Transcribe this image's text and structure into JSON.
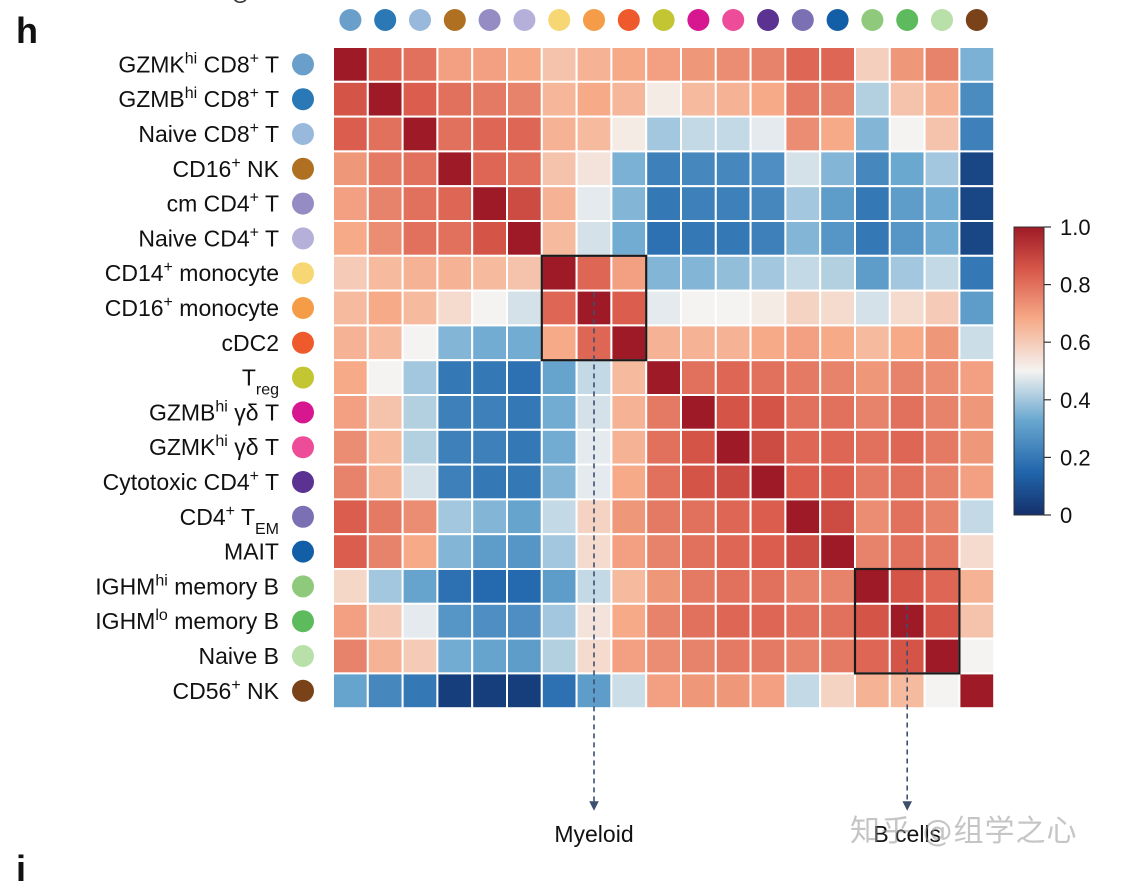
{
  "panel": "h",
  "cut_top_label": "G",
  "watermark": "知乎 @组学之心",
  "chart_data": {
    "type": "heatmap",
    "title": "",
    "rows": [
      {
        "name": "GZMKhi CD8+ T",
        "base": "GZMK",
        "sup1": "hi",
        "mid": " CD8",
        "sup2": "+",
        "tail": " T",
        "sub": "",
        "color": "#6a9fcb"
      },
      {
        "name": "GZMBhi CD8+ T",
        "base": "GZMB",
        "sup1": "hi",
        "mid": " CD8",
        "sup2": "+",
        "tail": " T",
        "sub": "",
        "color": "#2a78b5"
      },
      {
        "name": "Naive CD8+ T",
        "base": "Naive CD8",
        "sup1": "+",
        "mid": " T",
        "sup2": "",
        "tail": "",
        "sub": "",
        "color": "#98b8dc"
      },
      {
        "name": "CD16+ NK",
        "base": "CD16",
        "sup1": "+",
        "mid": " NK",
        "sup2": "",
        "tail": "",
        "sub": "",
        "color": "#b07022"
      },
      {
        "name": "cm CD4+ T",
        "base": "cm CD4",
        "sup1": "+",
        "mid": " T",
        "sup2": "",
        "tail": "",
        "sub": "",
        "color": "#948cc2"
      },
      {
        "name": "Naive CD4+ T",
        "base": "Naive CD4",
        "sup1": "+",
        "mid": " T",
        "sup2": "",
        "tail": "",
        "sub": "",
        "color": "#b4b0da"
      },
      {
        "name": "CD14+ monocyte",
        "base": "CD14",
        "sup1": "+",
        "mid": " monocyte",
        "sup2": "",
        "tail": "",
        "sub": "",
        "color": "#f7d774"
      },
      {
        "name": "CD16+ monocyte",
        "base": "CD16",
        "sup1": "+",
        "mid": " monocyte",
        "sup2": "",
        "tail": "",
        "sub": "",
        "color": "#f59c48"
      },
      {
        "name": "cDC2",
        "base": "cDC2",
        "sup1": "",
        "mid": "",
        "sup2": "",
        "tail": "",
        "sub": "",
        "color": "#ef5a2d"
      },
      {
        "name": "Treg",
        "base": "T",
        "sup1": "",
        "mid": "",
        "sup2": "",
        "tail": "",
        "sub": "reg",
        "color": "#c3c533"
      },
      {
        "name": "GZMBhi γδ T",
        "base": "GZMB",
        "sup1": "hi",
        "mid": " γδ T",
        "sup2": "",
        "tail": "",
        "sub": "",
        "color": "#d6178f"
      },
      {
        "name": "GZMKhi γδ T",
        "base": "GZMK",
        "sup1": "hi",
        "mid": " γδ T",
        "sup2": "",
        "tail": "",
        "sub": "",
        "color": "#ec4c98"
      },
      {
        "name": "Cytotoxic CD4+ T",
        "base": "Cytotoxic CD4",
        "sup1": "+",
        "mid": " T",
        "sup2": "",
        "tail": "",
        "sub": "",
        "color": "#5b3192"
      },
      {
        "name": "CD4+ TEM",
        "base": "CD4",
        "sup1": "+",
        "mid": " T",
        "sup2": "",
        "tail": "",
        "sub": "EM",
        "color": "#7b70b4"
      },
      {
        "name": "MAIT",
        "base": "MAIT",
        "sup1": "",
        "mid": "",
        "sup2": "",
        "tail": "",
        "sub": "",
        "color": "#125fa8"
      },
      {
        "name": "IGHMhi memory B",
        "base": "IGHM",
        "sup1": "hi",
        "mid": " memory B",
        "sup2": "",
        "tail": "",
        "sub": "",
        "color": "#8fca7c"
      },
      {
        "name": "IGHMlo memory B",
        "base": "IGHM",
        "sup1": "lo",
        "mid": " memory B",
        "sup2": "",
        "tail": "",
        "sub": "",
        "color": "#5dbb5d"
      },
      {
        "name": "Naive B",
        "base": "Naive B",
        "sup1": "",
        "mid": "",
        "sup2": "",
        "tail": "",
        "sub": "",
        "color": "#b9e0a8"
      },
      {
        "name": "CD56+ NK",
        "base": "CD56",
        "sup1": "+",
        "mid": " NK",
        "sup2": "",
        "tail": "",
        "sub": "",
        "color": "#7a4218"
      }
    ],
    "values": [
      [
        1.0,
        0.82,
        0.8,
        0.7,
        0.7,
        0.68,
        0.62,
        0.66,
        0.68,
        0.7,
        0.72,
        0.74,
        0.76,
        0.82,
        0.82,
        0.59,
        0.72,
        0.76,
        0.35
      ],
      [
        0.86,
        1.0,
        0.84,
        0.8,
        0.78,
        0.76,
        0.65,
        0.68,
        0.65,
        0.52,
        0.64,
        0.66,
        0.68,
        0.78,
        0.76,
        0.42,
        0.62,
        0.66,
        0.25
      ],
      [
        0.84,
        0.8,
        1.0,
        0.8,
        0.82,
        0.82,
        0.66,
        0.64,
        0.52,
        0.4,
        0.44,
        0.44,
        0.48,
        0.74,
        0.68,
        0.36,
        0.5,
        0.62,
        0.22
      ],
      [
        0.72,
        0.78,
        0.8,
        1.0,
        0.82,
        0.8,
        0.62,
        0.54,
        0.35,
        0.22,
        0.24,
        0.24,
        0.26,
        0.46,
        0.36,
        0.24,
        0.33,
        0.4,
        0.06
      ],
      [
        0.7,
        0.76,
        0.8,
        0.82,
        1.0,
        0.88,
        0.66,
        0.48,
        0.36,
        0.2,
        0.22,
        0.22,
        0.24,
        0.4,
        0.3,
        0.2,
        0.3,
        0.34,
        0.06
      ],
      [
        0.68,
        0.74,
        0.8,
        0.8,
        0.86,
        1.0,
        0.64,
        0.46,
        0.34,
        0.18,
        0.2,
        0.2,
        0.22,
        0.36,
        0.28,
        0.2,
        0.28,
        0.34,
        0.06
      ],
      [
        0.6,
        0.64,
        0.66,
        0.66,
        0.64,
        0.62,
        1.0,
        0.82,
        0.7,
        0.36,
        0.36,
        0.38,
        0.4,
        0.44,
        0.42,
        0.3,
        0.4,
        0.44,
        0.2
      ],
      [
        0.64,
        0.68,
        0.64,
        0.56,
        0.5,
        0.46,
        0.82,
        1.0,
        0.84,
        0.48,
        0.5,
        0.5,
        0.52,
        0.58,
        0.56,
        0.46,
        0.56,
        0.6,
        0.3
      ],
      [
        0.66,
        0.64,
        0.5,
        0.36,
        0.34,
        0.34,
        0.68,
        0.82,
        1.0,
        0.66,
        0.66,
        0.66,
        0.68,
        0.7,
        0.68,
        0.64,
        0.68,
        0.72,
        0.45
      ],
      [
        0.68,
        0.5,
        0.4,
        0.2,
        0.2,
        0.18,
        0.32,
        0.44,
        0.64,
        1.0,
        0.8,
        0.82,
        0.8,
        0.78,
        0.76,
        0.72,
        0.76,
        0.74,
        0.7
      ],
      [
        0.7,
        0.62,
        0.42,
        0.22,
        0.22,
        0.2,
        0.34,
        0.46,
        0.66,
        0.78,
        1.0,
        0.86,
        0.86,
        0.8,
        0.8,
        0.76,
        0.8,
        0.76,
        0.72
      ],
      [
        0.74,
        0.64,
        0.42,
        0.22,
        0.22,
        0.2,
        0.34,
        0.48,
        0.66,
        0.8,
        0.86,
        1.0,
        0.88,
        0.82,
        0.82,
        0.8,
        0.82,
        0.78,
        0.72
      ],
      [
        0.76,
        0.66,
        0.46,
        0.22,
        0.2,
        0.2,
        0.36,
        0.48,
        0.68,
        0.8,
        0.86,
        0.88,
        1.0,
        0.84,
        0.84,
        0.78,
        0.8,
        0.76,
        0.7
      ],
      [
        0.84,
        0.78,
        0.74,
        0.4,
        0.36,
        0.32,
        0.44,
        0.58,
        0.72,
        0.78,
        0.8,
        0.82,
        0.84,
        1.0,
        0.88,
        0.74,
        0.8,
        0.76,
        0.44
      ],
      [
        0.84,
        0.76,
        0.68,
        0.36,
        0.3,
        0.28,
        0.4,
        0.56,
        0.7,
        0.76,
        0.8,
        0.82,
        0.84,
        0.88,
        1.0,
        0.76,
        0.8,
        0.78,
        0.56
      ],
      [
        0.57,
        0.4,
        0.32,
        0.18,
        0.16,
        0.16,
        0.3,
        0.44,
        0.64,
        0.72,
        0.78,
        0.8,
        0.8,
        0.76,
        0.76,
        1.0,
        0.86,
        0.82,
        0.66
      ],
      [
        0.7,
        0.6,
        0.48,
        0.28,
        0.26,
        0.26,
        0.4,
        0.54,
        0.68,
        0.76,
        0.8,
        0.82,
        0.82,
        0.8,
        0.8,
        0.86,
        1.0,
        0.86,
        0.62
      ],
      [
        0.76,
        0.66,
        0.6,
        0.34,
        0.32,
        0.3,
        0.42,
        0.56,
        0.7,
        0.74,
        0.76,
        0.78,
        0.78,
        0.76,
        0.78,
        0.82,
        0.86,
        1.0,
        0.5
      ],
      [
        0.32,
        0.24,
        0.2,
        0.04,
        0.04,
        0.04,
        0.18,
        0.3,
        0.45,
        0.7,
        0.72,
        0.72,
        0.7,
        0.44,
        0.58,
        0.66,
        0.64,
        0.5,
        1.0
      ]
    ],
    "colorbar": {
      "min": 0,
      "max": 1.0,
      "ticks": [
        "1.0",
        "0.8",
        "0.6",
        "0.4",
        "0.2",
        "0"
      ],
      "tick_values": [
        1.0,
        0.8,
        0.6,
        0.4,
        0.2,
        0
      ],
      "stops": [
        {
          "value": 0.0,
          "color": "#14306b"
        },
        {
          "value": 0.15,
          "color": "#2166ac"
        },
        {
          "value": 0.33,
          "color": "#6aa8d0"
        },
        {
          "value": 0.5,
          "color": "#f4f3f1"
        },
        {
          "value": 0.68,
          "color": "#f6aa88"
        },
        {
          "value": 0.85,
          "color": "#d8584a"
        },
        {
          "value": 1.0,
          "color": "#9e1a26"
        }
      ]
    },
    "highlight_boxes": [
      {
        "name": "Myeloid",
        "start": 6,
        "end": 8,
        "label": "Myeloid",
        "arrow_col": 7
      },
      {
        "name": "B cells",
        "start": 15,
        "end": 17,
        "label": "B cells",
        "arrow_col": 16
      }
    ]
  }
}
